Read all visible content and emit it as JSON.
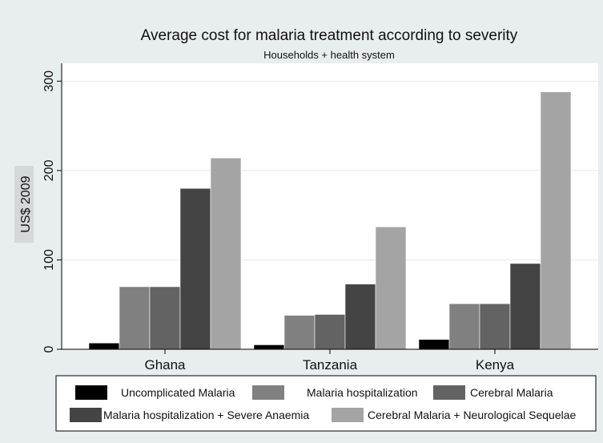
{
  "chart_data": {
    "type": "bar",
    "title": "Average cost for malaria treatment according to severity",
    "subtitle": "Households + health system",
    "ylabel": "US$ 2009",
    "xlabel": "",
    "ylim": [
      0,
      320
    ],
    "yticks": [
      0,
      100,
      200,
      300
    ],
    "grid": true,
    "legend_position": "bottom",
    "categories": [
      "Ghana",
      "Tanzania",
      "Kenya"
    ],
    "series": [
      {
        "name": "Uncomplicated Malaria",
        "color": "#000000",
        "values": [
          7,
          5,
          11
        ]
      },
      {
        "name": "Malaria hospitalization",
        "color": "#808080",
        "values": [
          70,
          38,
          51
        ]
      },
      {
        "name": "Cerebral Malaria",
        "color": "#636363",
        "values": [
          70,
          39,
          51
        ]
      },
      {
        "name": "Malaria hospitalization + Severe Anaemia",
        "color": "#444444",
        "values": [
          180,
          73,
          96
        ]
      },
      {
        "name": "Cerebral Malaria + Neurological Sequelae",
        "color": "#a4a4a4",
        "values": [
          214,
          137,
          288
        ]
      }
    ],
    "background_color": "#e8edf0",
    "plot_background_color": "#ffffff",
    "grid_color": "#e4e8ea"
  }
}
